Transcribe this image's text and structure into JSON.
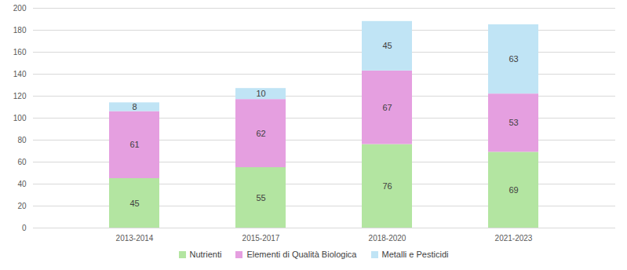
{
  "chart_data": {
    "type": "bar",
    "stacked": true,
    "data_labels": true,
    "grid": true,
    "legend": "bottom",
    "categories": [
      "2013-2014",
      "2015-2017",
      "2018-2020",
      "2021-2023"
    ],
    "series": [
      {
        "name": "Nutrienti",
        "color": "#b3e5a1",
        "values": [
          45,
          55,
          76,
          69
        ]
      },
      {
        "name": "Elementi di Qualità Biologica",
        "color": "#e59fe0",
        "values": [
          61,
          62,
          67,
          53
        ]
      },
      {
        "name": "Metalli e Pesticidi",
        "color": "#c0e4f5",
        "values": [
          8,
          10,
          45,
          63
        ]
      }
    ],
    "ylim": [
      0,
      200
    ],
    "yticks": [
      0,
      20,
      40,
      60,
      80,
      100,
      120,
      140,
      160,
      180,
      200
    ]
  }
}
